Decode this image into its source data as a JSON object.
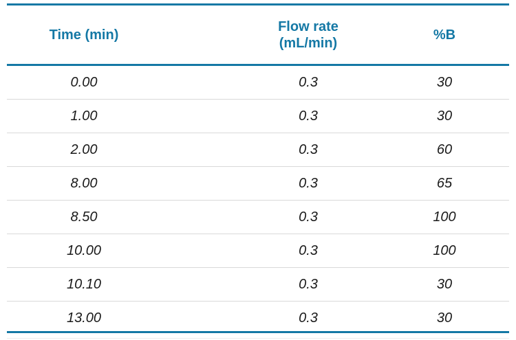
{
  "table": {
    "columns": [
      {
        "id": "time",
        "label": "Time (min)"
      },
      {
        "id": "flow_rate",
        "label": "Flow rate\n(mL/min)"
      },
      {
        "id": "percent_b",
        "label": "%B"
      }
    ],
    "rows": [
      {
        "time": "0.00",
        "flow_rate": "0.3",
        "percent_b": "30"
      },
      {
        "time": "1.00",
        "flow_rate": "0.3",
        "percent_b": "30"
      },
      {
        "time": "2.00",
        "flow_rate": "0.3",
        "percent_b": "60"
      },
      {
        "time": "8.00",
        "flow_rate": "0.3",
        "percent_b": "65"
      },
      {
        "time": "8.50",
        "flow_rate": "0.3",
        "percent_b": "100"
      },
      {
        "time": "10.00",
        "flow_rate": "0.3",
        "percent_b": "100"
      },
      {
        "time": "10.10",
        "flow_rate": "0.3",
        "percent_b": "30"
      },
      {
        "time": "13.00",
        "flow_rate": "0.3",
        "percent_b": "30"
      }
    ],
    "colors": {
      "accent_teal": "#1478A5",
      "row_divider": "#D9D9D9",
      "bottom_faint_line": "#ECECEC",
      "data_text": "#1A1A1A"
    }
  }
}
